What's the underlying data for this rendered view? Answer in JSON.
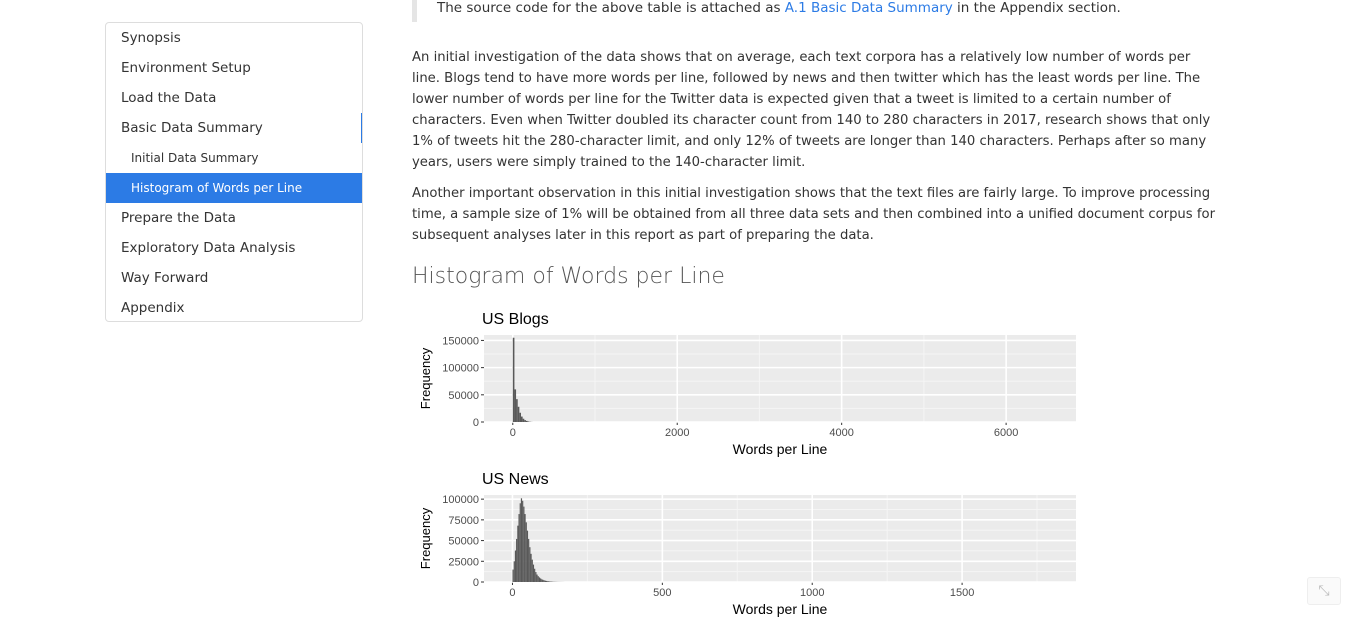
{
  "toc": {
    "items": [
      {
        "label": "Synopsis"
      },
      {
        "label": "Environment Setup"
      },
      {
        "label": "Load the Data"
      },
      {
        "label": "Basic Data Summary"
      },
      {
        "label": "Initial Data Summary"
      },
      {
        "label": "Histogram of Words per Line"
      },
      {
        "label": "Prepare the Data"
      },
      {
        "label": "Exploratory Data Analysis"
      },
      {
        "label": "Way Forward"
      },
      {
        "label": "Appendix"
      }
    ],
    "active_item": "Histogram of Words per Line",
    "accent_color": "#2c7be5"
  },
  "content": {
    "blockquote": {
      "prefix": "The source code for the above table is attached as ",
      "link_text": "A.1 Basic Data Summary",
      "suffix": " in the Appendix section."
    },
    "paragraph_1": "An initial investigation of the data shows that on average, each text corpora has a relatively low number of words per line. Blogs tend to have more words per line, followed by news and then twitter which has the least words per line. The lower number of words per line for the Twitter data is expected given that a tweet is limited to a certain number of characters. Even when Twitter doubled its character count from 140 to 280 characters in 2017, research shows that only 1% of tweets hit the 280-character limit, and only 12% of tweets are longer than 140 characters. Perhaps after so many years, users were simply trained to the 140-character limit.",
    "paragraph_2": "Another important observation in this initial investigation shows that the text files are fairly large. To improve processing time, a sample size of 1% will be obtained from all three data sets and then combined into a unified document corpus for subsequent analyses later in this report as part of preparing the data.",
    "section_heading": "Histogram of Words per Line"
  },
  "chart_data": [
    {
      "type": "bar",
      "title": "US Blogs",
      "xlabel": "Words per Line",
      "ylabel": "Frequency",
      "xlim": [
        -350,
        6850
      ],
      "ylim": [
        0,
        160000
      ],
      "x_ticks": [
        0,
        2000,
        4000,
        6000
      ],
      "x_tick_labels": [
        "0",
        "2000",
        "4000",
        "6000"
      ],
      "y_ticks": [
        0,
        50000,
        100000,
        150000
      ],
      "y_tick_labels": [
        "0",
        "50000",
        "100000",
        "150000"
      ],
      "bin_width": 20,
      "x": [
        0,
        20,
        40,
        60,
        80,
        100,
        120,
        140,
        160,
        180,
        200,
        220
      ],
      "values": [
        155000,
        60000,
        42000,
        28000,
        17000,
        10000,
        6000,
        3500,
        2000,
        1000,
        500,
        200
      ],
      "background": "#ebebeb",
      "bar_color": "#595959"
    },
    {
      "type": "bar",
      "title": "US News",
      "xlabel": "Words per Line",
      "ylabel": "Frequency",
      "xlim": [
        -95,
        1880
      ],
      "ylim": [
        0,
        105000
      ],
      "x_ticks": [
        0,
        500,
        1000,
        1500
      ],
      "x_tick_labels": [
        "0",
        "500",
        "1000",
        "1500"
      ],
      "y_ticks": [
        0,
        25000,
        50000,
        75000,
        100000
      ],
      "y_tick_labels": [
        "0",
        "25000",
        "50000",
        "75000",
        "100000"
      ],
      "bin_width": 4,
      "x": [
        0,
        4,
        8,
        12,
        16,
        20,
        24,
        28,
        32,
        36,
        40,
        44,
        48,
        52,
        56,
        60,
        64,
        68,
        72,
        76,
        80,
        84,
        88,
        92,
        96,
        100,
        104,
        108,
        112,
        116,
        120,
        124,
        128,
        132,
        136,
        140,
        144,
        148,
        152,
        156,
        160,
        164,
        168,
        172
      ],
      "values": [
        15000,
        25000,
        38000,
        52000,
        68000,
        82000,
        95000,
        101000,
        98000,
        91000,
        82000,
        72000,
        62000,
        52000,
        42000,
        34000,
        27000,
        21000,
        16000,
        12000,
        9000,
        7000,
        5500,
        4300,
        3300,
        2600,
        2000,
        1600,
        1300,
        1000,
        800,
        600,
        500,
        400,
        300,
        250,
        200,
        150,
        120,
        100,
        80,
        60,
        40,
        20
      ],
      "background": "#ebebeb",
      "bar_color": "#595959"
    }
  ],
  "corner_button": {
    "icon": "collapse-arrows-icon",
    "glyph": "⤡"
  }
}
